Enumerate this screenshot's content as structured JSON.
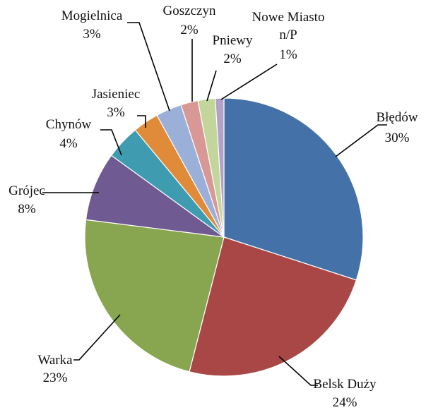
{
  "chart_data": {
    "type": "pie",
    "title": "",
    "slices": [
      {
        "label": "Błędów",
        "value": 30,
        "pct_label": "30%",
        "color": "#4472a8"
      },
      {
        "label": "Belsk Duży",
        "value": 24,
        "pct_label": "24%",
        "color": "#a84745"
      },
      {
        "label": "Warka",
        "value": 23,
        "pct_label": "23%",
        "color": "#88a64f"
      },
      {
        "label": "Grójec",
        "value": 8,
        "pct_label": "8%",
        "color": "#6f5a91"
      },
      {
        "label": "Chynów",
        "value": 4,
        "pct_label": "4%",
        "color": "#3e9bb0"
      },
      {
        "label": "Jasieniec",
        "value": 3,
        "pct_label": "3%",
        "color": "#e08b3a"
      },
      {
        "label": "Mogielnica",
        "value": 3,
        "pct_label": "3%",
        "color": "#9bb0d8"
      },
      {
        "label": "Goszczyn",
        "value": 2,
        "pct_label": "2%",
        "color": "#d89896"
      },
      {
        "label": "Pniewy",
        "value": 2,
        "pct_label": "2%",
        "color": "#c2d69b"
      },
      {
        "label": "Nowe Miasto n/P",
        "value": 1,
        "pct_label": "1%",
        "color": "#b3a2c7"
      }
    ]
  }
}
